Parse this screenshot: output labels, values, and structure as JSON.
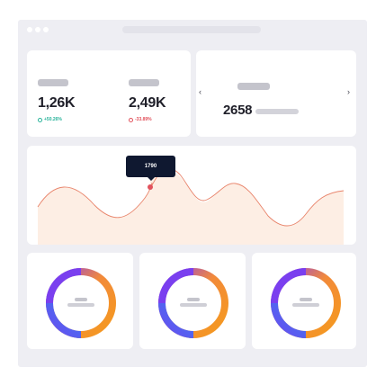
{
  "stats": [
    {
      "value": "1,26K",
      "delta": "+50.26%",
      "trend": "up"
    },
    {
      "value": "2,49K",
      "delta": "-33.89%",
      "trend": "down"
    }
  ],
  "carousel": {
    "value": "2658",
    "prev_icon": "chevron-left-icon",
    "next_icon": "chevron-right-icon"
  },
  "chart": {
    "tooltip_value": "1790"
  },
  "colors": {
    "accent_up": "#28b39a",
    "accent_down": "#e2525c",
    "line": "#e8836a",
    "area": "#fdeee4",
    "tooltip_bg": "#0f1830",
    "ring_start": "#3a7bf0",
    "ring_mid": "#8a3cf0",
    "ring_end": "#f59a1e"
  }
}
